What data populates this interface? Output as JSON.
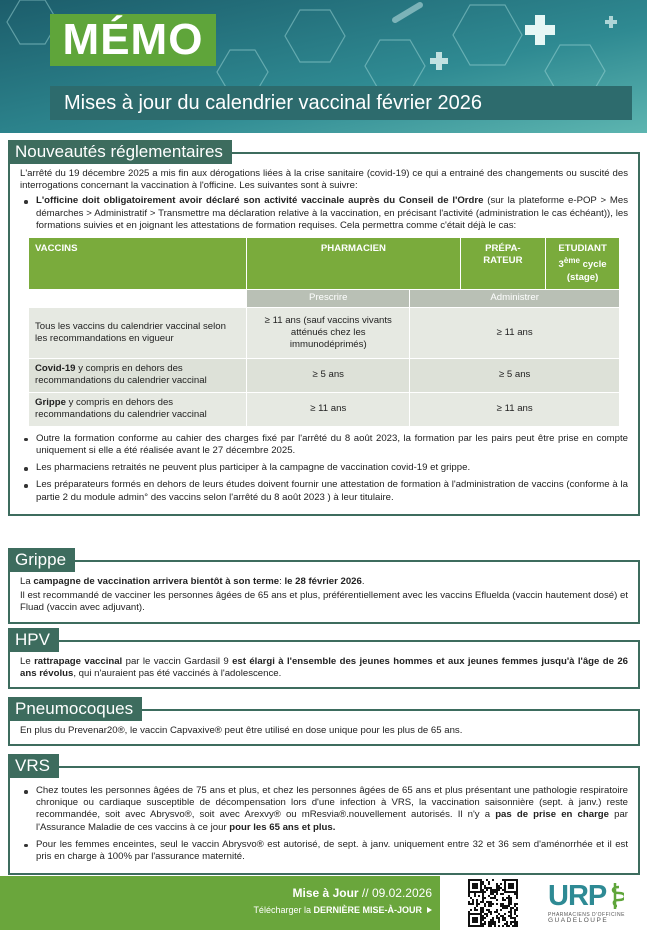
{
  "header": {
    "title": "MÉMO",
    "subtitle": "Mises à jour du calendrier vaccinal février 2026"
  },
  "sections": [
    {
      "title": "Nouveautés réglementaires",
      "blocks": [
        {
          "kind": "paragraph",
          "runs": [
            {
              "text": "L'arrêté du 19 décembre 2025 a mis fin aux dérogations liées à la crise sanitaire (covid-19) ce qui a entrainé des changements ou suscité des interrogations concernant la vaccination à l'officine. Les suivantes sont à suivre:"
            }
          ]
        },
        {
          "kind": "bullet",
          "runs": [
            {
              "text": "L'officine doit obligatoirement avoir déclaré son activité vaccinale auprès du Conseil de l'Ordre",
              "bold": true
            },
            {
              "text": " (sur la plateforme e-POP > Mes démarches > Administratif > Transmettre ma déclaration relative à la vaccination, en précisant l'activité (administration le cas échéant)),  les formations suivies et en joignant les attestations de formation requises. Cela permettra comme c'était déjà le cas:"
            }
          ]
        },
        {
          "kind": "table",
          "headers": [
            [
              {
                "text": "VACCINS"
              }
            ],
            [
              {
                "text": "PHARMACIEN"
              }
            ],
            [
              {
                "text": "PRÉPA-RATEUR"
              }
            ],
            [
              {
                "text": "ETUDIANT 3"
              },
              {
                "text": "ème",
                "sup": true
              },
              {
                "text": " cycle (stage)"
              }
            ]
          ],
          "subheaders": [
            "Prescrire",
            "Administrer"
          ],
          "rows": [
            {
              "label": [
                {
                  "text": "Tous les vaccins du calendrier vaccinal selon les recommandations en vigueur"
                }
              ],
              "prescrire": "≥ 11 ans (sauf vaccins vivants atténués chez les immunodéprimés)",
              "administrer": "≥ 11 ans"
            },
            {
              "label": [
                {
                  "text": "Covid-19",
                  "bold": true
                },
                {
                  "text": " y compris en dehors des recommandations du calendrier vaccinal"
                }
              ],
              "prescrire": "≥ 5 ans",
              "administrer": "≥ 5 ans"
            },
            {
              "label": [
                {
                  "text": "Grippe",
                  "bold": true
                },
                {
                  "text": " y compris en dehors des recommandations du calendrier vaccinal"
                }
              ],
              "prescrire": "≥ 11 ans",
              "administrer": "≥ 11 ans"
            }
          ]
        },
        {
          "kind": "bullet",
          "runs": [
            {
              "text": "Outre la formation conforme au cahier des charges fixé par l'arrêté du 8 août 2023, la formation par les pairs peut être prise en compte uniquement si elle a été réalisée avant le 27 décembre 2025."
            }
          ]
        },
        {
          "kind": "bullet",
          "runs": [
            {
              "text": "Les pharmaciens retraités ne peuvent plus participer à la campagne de vaccination covid-19 et grippe."
            }
          ]
        },
        {
          "kind": "bullet",
          "runs": [
            {
              "text": "Les préparateurs formés en dehors de leurs études doivent fournir une attestation de formation à l'administration de vaccins (conforme à la partie 2 du module admin° des vaccins selon l'arrêté du 8 août 2023 ) à leur titulaire."
            }
          ]
        }
      ]
    },
    {
      "title": "Grippe",
      "blocks": [
        {
          "kind": "paragraph",
          "runs": [
            {
              "text": "La "
            },
            {
              "text": "campagne de vaccination arrivera bientôt à son terme",
              "bold": true
            },
            {
              "text": ": "
            },
            {
              "text": "le 28 février 2026",
              "bold": true
            },
            {
              "text": "."
            }
          ]
        },
        {
          "kind": "paragraph",
          "runs": [
            {
              "text": "Il est recommandé de vacciner les personnes âgées de 65 ans et plus, préférentiellement avec les vaccins Efluelda (vaccin hautement dosé) et Fluad (vaccin avec adjuvant)."
            }
          ]
        }
      ]
    },
    {
      "title": "HPV",
      "blocks": [
        {
          "kind": "paragraph",
          "runs": [
            {
              "text": "Le "
            },
            {
              "text": "rattrapage vaccinal",
              "bold": true
            },
            {
              "text": " par le vaccin Gardasil 9 "
            },
            {
              "text": "est élargi à l'ensemble des jeunes hommes et aux jeunes femmes jusqu'à l'âge de 26 ans révolus",
              "bold": true
            },
            {
              "text": ", qui n'auraient pas été vaccinés à l'adolescence."
            }
          ]
        }
      ]
    },
    {
      "title": "Pneumocoques",
      "blocks": [
        {
          "kind": "paragraph",
          "runs": [
            {
              "text": "En plus du Prevenar20®, le vaccin Capvaxive® peut être utilisé en dose unique pour les plus de 65 ans."
            }
          ]
        }
      ]
    },
    {
      "title": "VRS",
      "blocks": [
        {
          "kind": "bullet",
          "runs": [
            {
              "text": "Chez toutes les personnes âgées de 75 ans et plus, et chez les personnes âgées de 65 ans et plus présentant une pathologie respiratoire chronique ou cardiaque susceptible de décompensation lors d'une infection à VRS, la vaccination saisonnière (sept. à janv.) reste recommandée, soit avec Abrysvo®, soit avec  Arexvy® ou mResvia®.nouvellement autorisés. Il n'y a "
            },
            {
              "text": "pas de prise en charge",
              "bold": true
            },
            {
              "text": " par l'Assurance Maladie de ces vaccins à ce jour "
            },
            {
              "text": "pour les 65 ans et plus.",
              "bold": true
            }
          ]
        },
        {
          "kind": "bullet",
          "runs": [
            {
              "text": "Pour les femmes enceintes, seul le vaccin Abrysvo® est autorisé, de sept. à janv. uniquement entre 32 et 36 sem d'aménorrhée et il est pris en charge à 100% par l'assurance maternité."
            }
          ]
        }
      ]
    }
  ],
  "footer": {
    "update_label": "Mise à Jour",
    "separator": "//",
    "date": "09.02.2026",
    "download_prefix": "Télécharger la",
    "download_link": "DERNIÈRE MISE-À-JOUR",
    "logo": "URP",
    "logo_subtitle": "PHARMACIENS D'OFFICINE",
    "logo_region": "GUADELOUPE"
  }
}
